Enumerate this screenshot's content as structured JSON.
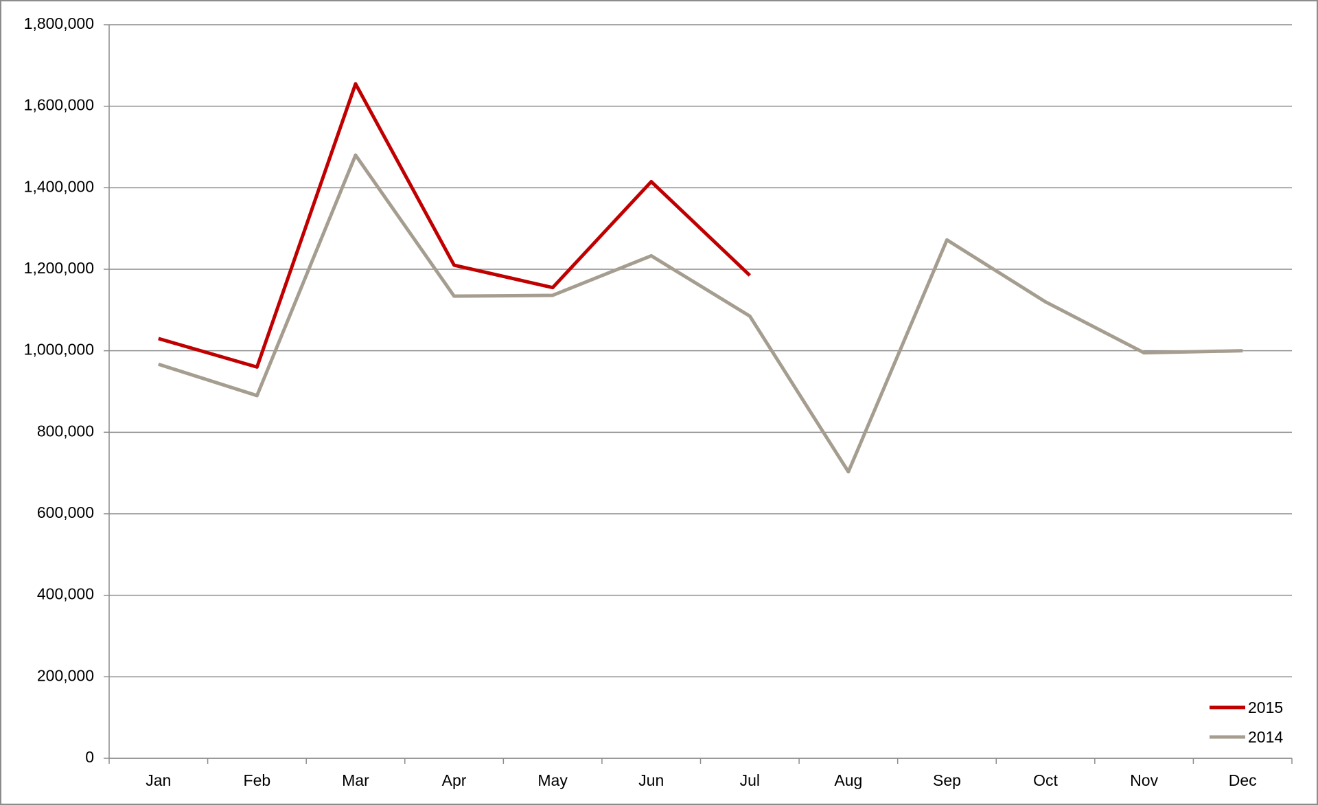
{
  "chart_data": {
    "type": "line",
    "categories": [
      "Jan",
      "Feb",
      "Mar",
      "Apr",
      "May",
      "Jun",
      "Jul",
      "Aug",
      "Sep",
      "Oct",
      "Nov",
      "Dec"
    ],
    "series": [
      {
        "name": "2015",
        "color": "#c00000",
        "values": [
          1030000,
          960000,
          1655000,
          1210000,
          1155000,
          1415000,
          1185000,
          null,
          null,
          null,
          null,
          null
        ]
      },
      {
        "name": "2014",
        "color": "#a59d8f",
        "values": [
          967000,
          890000,
          1480000,
          1134000,
          1136000,
          1233000,
          1085000,
          703000,
          1272000,
          1120000,
          995000,
          1000000
        ]
      }
    ],
    "ylim": [
      0,
      1800000
    ],
    "yticks": [
      0,
      {
        "value": 200000,
        "label": "200,000"
      },
      {
        "value": 400000,
        "label": "400,000"
      },
      {
        "value": 600000,
        "label": "600,000"
      },
      {
        "value": 800000,
        "label": "800,000"
      },
      {
        "value": 1000000,
        "label": "1,000,000"
      },
      {
        "value": 1200000,
        "label": "1,200,000"
      },
      {
        "value": 1400000,
        "label": "1,400,000"
      },
      {
        "value": 1600000,
        "label": "1,600,000"
      },
      {
        "value": 1800000,
        "label": "1,800,000"
      }
    ],
    "grid": true,
    "legend": "bottom-right"
  }
}
